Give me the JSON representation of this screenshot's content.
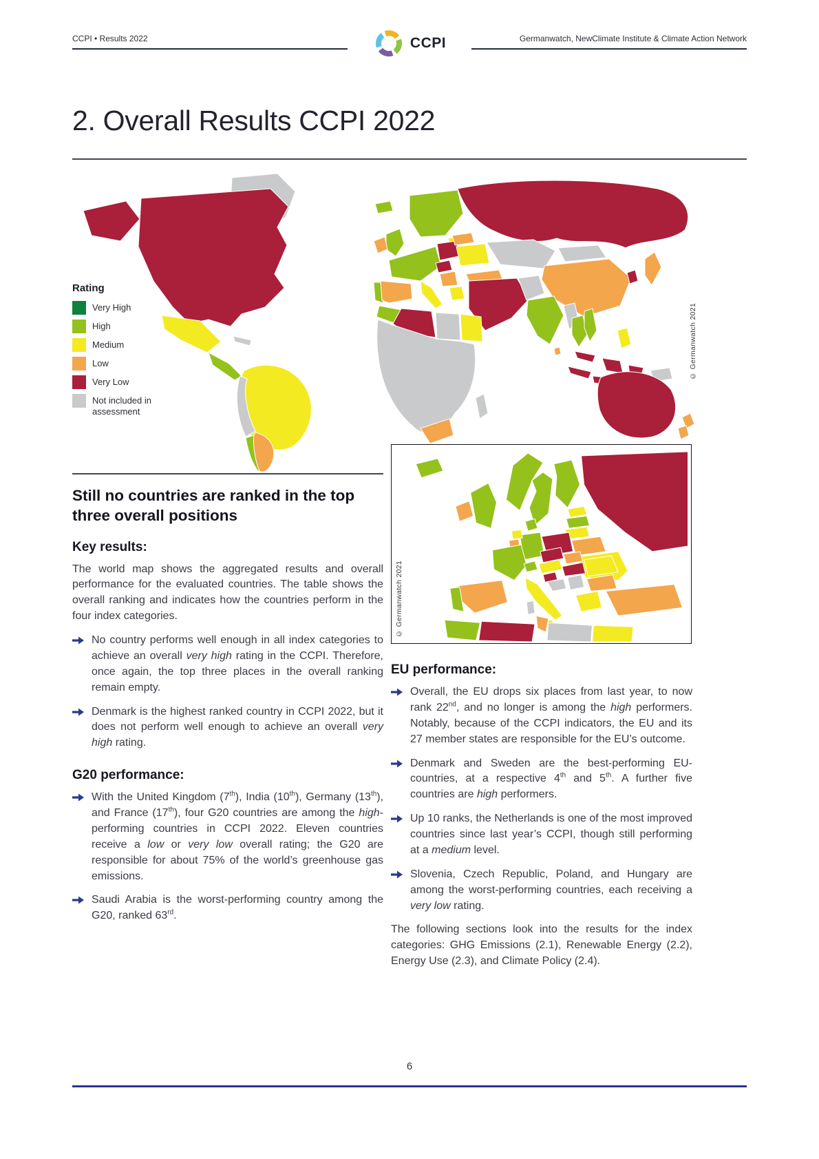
{
  "colors": {
    "accent_blue": "#2b3a8f",
    "header_line": "#252c3a",
    "footer_line": "#2e3192",
    "rule_gray": "#45454f"
  },
  "icons": {
    "bullet_arrow": "➔",
    "logo_ring": "ccpi-ring"
  },
  "header": {
    "left": "CCPI • Results 2022",
    "right": "Germanwatch, NewClimate Institute & Climate Action Network"
  },
  "logo": {
    "text": "CCPI",
    "segments": [
      "#8dc63f",
      "#7c5aa5",
      "#5ec3e6",
      "#f0b323"
    ]
  },
  "title": "2. Overall Results CCPI 2022",
  "map": {
    "legend_title": "Rating",
    "legend": [
      {
        "key": "very_high",
        "label": "Very High",
        "color": "#0e8140"
      },
      {
        "key": "high",
        "label": "High",
        "color": "#94c11c"
      },
      {
        "key": "medium",
        "label": "Medium",
        "color": "#f3ea21"
      },
      {
        "key": "low",
        "label": "Low",
        "color": "#f3a64c"
      },
      {
        "key": "very_low",
        "label": "Very Low",
        "color": "#aa1f3a"
      },
      {
        "key": "not_included",
        "label": "Not included in assessment",
        "color": "#c9cacb"
      }
    ],
    "world_copyright": "© Germanwatch 2021",
    "europe_copyright": "© Germanwatch 2021",
    "regions": {
      "greenland": "not_included",
      "alaska": "very_low",
      "usa_canada": "very_low",
      "mexico": "medium",
      "central_america": "high",
      "cuba": "not_included",
      "south_america_north": "medium",
      "andes_west": "not_included",
      "chile": "high",
      "argentina": "low",
      "iceland": "high",
      "scandinavia": "high",
      "baltic": "medium",
      "uk": "high",
      "ireland": "low",
      "france_germany": "high",
      "portugal": "high",
      "spain": "low",
      "poland": "very_low",
      "czech_hungary": "very_low",
      "italy": "medium",
      "ukraine_romania": "medium",
      "belarus": "low",
      "balkans": "low",
      "greece": "medium",
      "turkey": "low",
      "russia": "very_low",
      "central_asia": "not_included",
      "mongolia": "not_included",
      "china": "low",
      "south_korea": "very_low",
      "japan": "low",
      "middle_east": "very_low",
      "afghanistan_pakistan": "not_included",
      "india": "high",
      "sri_lanka": "low",
      "myanmar": "not_included",
      "thailand": "high",
      "vietnam": "high",
      "malaysia": "very_low",
      "indonesia": "very_low",
      "philippines": "medium",
      "papua_new_guinea": "not_included",
      "morocco": "high",
      "algeria": "very_low",
      "libya": "not_included",
      "egypt": "medium",
      "sub_saharan_africa": "not_included",
      "south_africa": "low",
      "madagascar": "not_included",
      "australia": "very_low",
      "new_zealand": "low"
    },
    "europe_regions": {
      "iceland": "high",
      "norway": "high",
      "sweden": "high",
      "finland": "high",
      "denmark": "high",
      "russia": "very_low",
      "estonia": "medium",
      "latvia": "high",
      "lithuania": "medium",
      "belarus": "low",
      "ukraine": "medium",
      "poland": "very_low",
      "germany": "high",
      "netherlands": "medium",
      "belgium": "low",
      "uk": "high",
      "ireland": "low",
      "france": "high",
      "switzerland": "high",
      "austria": "medium",
      "czech_republic": "very_low",
      "slovakia": "low",
      "hungary": "very_low",
      "slovenia": "very_low",
      "croatia": "not_included",
      "serbia": "not_included",
      "romania": "medium",
      "bulgaria": "low",
      "greece": "medium",
      "italy": "medium",
      "sicily": "medium",
      "sardinia": "not_included",
      "turkey": "low",
      "spain": "low",
      "portugal": "high",
      "morocco": "high",
      "algeria": "very_low",
      "tunisia": "low",
      "libya": "not_included",
      "egypt": "medium"
    }
  },
  "left_column": {
    "heading": "Still no countries are ranked in the top three overall positions",
    "key_results_heading": "Key results:",
    "intro": "The world map shows the aggregated results and overall performance for the evaluated countries. The table shows the overall ranking and indicates how the countries perform in the four index categories.",
    "key_bullets": [
      [
        {
          "t": "No country performs well enough in all index categories to achieve an overall "
        },
        {
          "t": "very high",
          "i": true
        },
        {
          "t": " rating in the CCPI. Therefore, once again, the top three places in the overall ranking remain empty."
        }
      ],
      [
        {
          "t": "Denmark is the highest ranked country in CCPI 2022, but it does not perform well enough to achieve an overall "
        },
        {
          "t": "very high",
          "i": true
        },
        {
          "t": " rating."
        }
      ]
    ],
    "g20_heading": "G20 performance:",
    "g20_bullets": [
      [
        {
          "t": "With the United Kingdom (7"
        },
        {
          "t": "th",
          "sup": true
        },
        {
          "t": "), India (10"
        },
        {
          "t": "th",
          "sup": true
        },
        {
          "t": "), Germany (13"
        },
        {
          "t": "th",
          "sup": true
        },
        {
          "t": "), and France (17"
        },
        {
          "t": "th",
          "sup": true
        },
        {
          "t": "), four G20 countries are among the "
        },
        {
          "t": "high",
          "i": true
        },
        {
          "t": "-performing countries in CCPI 2022. Eleven countries receive a "
        },
        {
          "t": "low",
          "i": true
        },
        {
          "t": " or "
        },
        {
          "t": "very low",
          "i": true
        },
        {
          "t": " overall rating; the G20 are responsible for about 75% of the world’s greenhouse gas emissions."
        }
      ],
      [
        {
          "t": "Saudi Arabia is the worst-performing country among the G20, ranked 63"
        },
        {
          "t": "rd",
          "sup": true
        },
        {
          "t": "."
        }
      ]
    ]
  },
  "right_column": {
    "eu_heading": "EU performance:",
    "eu_bullets": [
      [
        {
          "t": "Overall, the EU drops six places from last year, to now rank 22"
        },
        {
          "t": "nd",
          "sup": true
        },
        {
          "t": ", and no longer is among the "
        },
        {
          "t": "high",
          "i": true
        },
        {
          "t": " performers. Notably, because of the CCPI indicators, the EU and its 27 member states are responsible for the EU’s outcome."
        }
      ],
      [
        {
          "t": "Denmark and Sweden are the best-performing EU-countries, at a respective 4"
        },
        {
          "t": "th",
          "sup": true
        },
        {
          "t": " and 5"
        },
        {
          "t": "th",
          "sup": true
        },
        {
          "t": ". A further five countries are "
        },
        {
          "t": "high",
          "i": true
        },
        {
          "t": " performers."
        }
      ],
      [
        {
          "t": "Up 10 ranks, the Netherlands is one of the most improved countries since last year’s CCPI, though still performing at a "
        },
        {
          "t": "medium",
          "i": true
        },
        {
          "t": " level."
        }
      ],
      [
        {
          "t": "Slovenia, Czech Republic, Poland, and Hungary are among the worst-performing countries, each receiving a "
        },
        {
          "t": "very low",
          "i": true
        },
        {
          "t": " rating."
        }
      ]
    ],
    "closing": "The following sections look into the results for the index categories: GHG Emissions (2.1), Renewable Energy (2.2), Energy Use (2.3), and Climate Policy (2.4)."
  },
  "footer": {
    "page_number": "6"
  }
}
